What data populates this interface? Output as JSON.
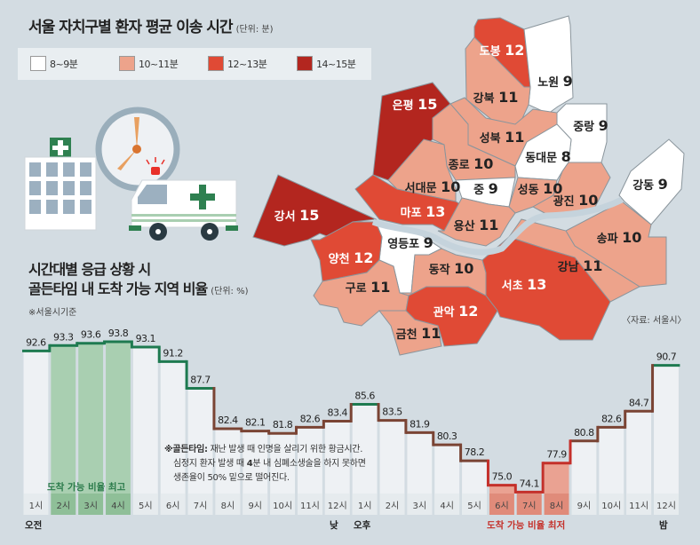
{
  "title": "서울 자치구별 환자 평균 이송 시간",
  "title_unit": "(단위: 분)",
  "legend": [
    {
      "label": "8~9분",
      "color": "#ffffff"
    },
    {
      "label": "10~11분",
      "color": "#eda38b"
    },
    {
      "label": "12~13분",
      "color": "#e04a35"
    },
    {
      "label": "14~15분",
      "color": "#b3261f"
    }
  ],
  "districts": [
    {
      "name": "도봉",
      "value": "12"
    },
    {
      "name": "노원",
      "value": "9"
    },
    {
      "name": "강북",
      "value": "11"
    },
    {
      "name": "은평",
      "value": "15"
    },
    {
      "name": "성북",
      "value": "11"
    },
    {
      "name": "중랑",
      "value": "9"
    },
    {
      "name": "종로",
      "value": "10"
    },
    {
      "name": "동대문",
      "value": "8"
    },
    {
      "name": "서대문",
      "value": "10"
    },
    {
      "name": "중",
      "value": "9"
    },
    {
      "name": "성동",
      "value": "10"
    },
    {
      "name": "광진",
      "value": "10"
    },
    {
      "name": "강동",
      "value": "9"
    },
    {
      "name": "마포",
      "value": "13"
    },
    {
      "name": "강서",
      "value": "15"
    },
    {
      "name": "용산",
      "value": "11"
    },
    {
      "name": "영등포",
      "value": "9"
    },
    {
      "name": "송파",
      "value": "10"
    },
    {
      "name": "양천",
      "value": "12"
    },
    {
      "name": "동작",
      "value": "10"
    },
    {
      "name": "강남",
      "value": "11"
    },
    {
      "name": "구로",
      "value": "11"
    },
    {
      "name": "서초",
      "value": "13"
    },
    {
      "name": "관악",
      "value": "12"
    },
    {
      "name": "금천",
      "value": "11"
    }
  ],
  "source": "〈자료: 서울시〉",
  "subtitle_line1": "시간대별 응급 상황 시",
  "subtitle_line2": "골든타임 내 도착 가능 지역 비율",
  "subtitle_unit": "(단위: %)",
  "basis_note": "※서울시기준",
  "golden_time_note": {
    "term": "※골든타임:",
    "line1": "재난 발생 때 인명을 살리기 위한 황금시간.",
    "line2a": "심정지 환자 발생 때 ",
    "line2b": "4",
    "line2c": "분 내 심폐소생술을 하지 못하면",
    "line3": "생존율이 50% 밑으로 떨어진다."
  },
  "highest_label": "도착 가능 비율 최고",
  "lowest_label": "도착 가능 비율 최저",
  "period_labels": {
    "am": "오전",
    "noon": "낮",
    "pm": "오후",
    "night": "밤"
  },
  "chart_data": {
    "type": "bar",
    "title": "시간대별 응급 상황 시 골든타임 내 도착 가능 지역 비율",
    "ylabel": "%",
    "categories": [
      "1시",
      "2시",
      "3시",
      "4시",
      "5시",
      "6시",
      "7시",
      "8시",
      "9시",
      "10시",
      "11시",
      "12시",
      "1시",
      "2시",
      "3시",
      "4시",
      "5시",
      "6시",
      "7시",
      "8시",
      "9시",
      "10시",
      "11시",
      "12시"
    ],
    "values": [
      92.6,
      93.3,
      93.6,
      93.8,
      93.1,
      91.2,
      87.7,
      82.4,
      82.1,
      81.8,
      82.6,
      83.4,
      85.6,
      83.5,
      81.9,
      80.3,
      78.2,
      75.0,
      74.1,
      77.9,
      80.8,
      82.6,
      84.7,
      90.7
    ],
    "highlight_high": [
      1,
      2,
      3
    ],
    "highlight_low": [
      17,
      18,
      19
    ],
    "colors": {
      "high": "#1e7a50",
      "mid": "#7a4434",
      "low": "#c4302a",
      "high_fill": "#a9cfb1",
      "low_fill": "#eaa292",
      "col_fill": "#eef1f4"
    }
  }
}
